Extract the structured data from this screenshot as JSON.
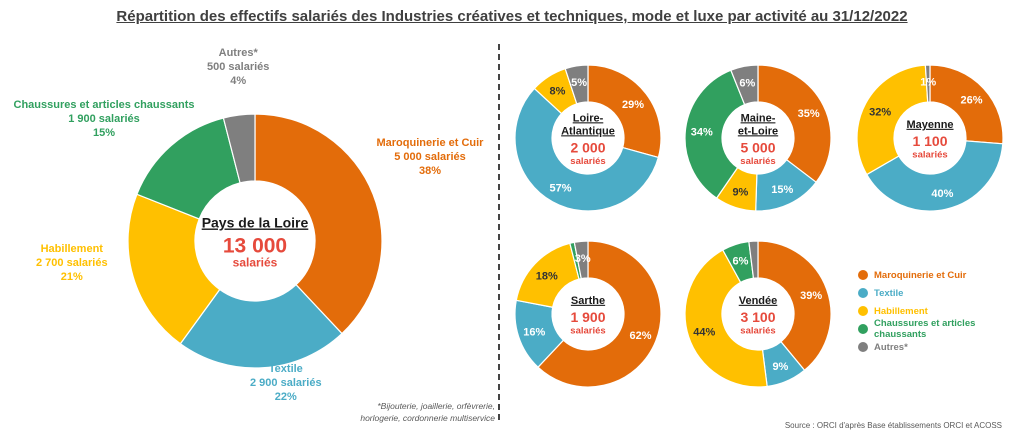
{
  "title": "Répartition des effectifs salariés des Industries créatives et techniques, mode et luxe par activité au 31/12/2022",
  "colors": {
    "maroquinerie": "#E36C0A",
    "textile": "#4BACC6",
    "habillement": "#FFC000",
    "chaussures": "#31A05F",
    "autres": "#7F7F7F",
    "total": "#E64A3C"
  },
  "legend": [
    {
      "key": "maroquinerie",
      "label": "Maroquinerie et Cuir"
    },
    {
      "key": "textile",
      "label": "Textile"
    },
    {
      "key": "habillement",
      "label": "Habillement"
    },
    {
      "key": "chaussures",
      "label": "Chaussures et articles chaussants"
    },
    {
      "key": "autres",
      "label": "Autres*"
    }
  ],
  "main_labels": {
    "maroquinerie": [
      "Maroquinerie et Cuir",
      "5 000 salariés",
      "38%"
    ],
    "textile": [
      "Textile",
      "2 900 salariés",
      "22%"
    ],
    "habillement": [
      "Habillement",
      "2 700 salariés",
      "21%"
    ],
    "chaussures": [
      "Chaussures et articles chaussants",
      "1 900 salariés",
      "15%"
    ],
    "autres": [
      "Autres*",
      "500 salariés",
      "4%"
    ]
  },
  "footnote": [
    "*Bijouterie, joaillerie, orfèvrerie,",
    "horlogerie, cordonnerie multiservice"
  ],
  "source": "Source : ORCI d'après Base établissements ORCI et ACOSS",
  "chart_data": [
    {
      "type": "pie",
      "name": "Pays de la Loire",
      "total": "13 000",
      "unit": "salariés",
      "categories": [
        "Maroquinerie et Cuir",
        "Textile",
        "Habillement",
        "Chaussures et articles chaussants",
        "Autres*"
      ],
      "values": [
        38,
        22,
        21,
        15,
        4
      ],
      "value_labels": [
        "5 000 salariés",
        "2 900 salariés",
        "2 700 salariés",
        "1 900 salariés",
        "500 salariés"
      ]
    },
    {
      "type": "pie",
      "name": [
        "Loire-",
        "Atlantique"
      ],
      "total": "2 000",
      "unit": "salariés",
      "categories": [
        "Maroquinerie et Cuir",
        "Textile",
        "Habillement",
        "Chaussures et articles chaussants",
        "Autres*"
      ],
      "values": [
        29,
        57,
        8,
        0,
        5
      ]
    },
    {
      "type": "pie",
      "name": [
        "Maine-",
        "et-Loire"
      ],
      "total": "5 000",
      "unit": "salariés",
      "categories": [
        "Maroquinerie et Cuir",
        "Textile",
        "Habillement",
        "Chaussures et articles chaussants",
        "Autres*"
      ],
      "values": [
        35,
        15,
        9,
        34,
        6
      ]
    },
    {
      "type": "pie",
      "name": [
        "Mayenne"
      ],
      "total": "1 100",
      "unit": "salariés",
      "categories": [
        "Maroquinerie et Cuir",
        "Textile",
        "Habillement",
        "Chaussures et articles chaussants",
        "Autres*"
      ],
      "values": [
        26,
        40,
        32,
        0,
        1
      ]
    },
    {
      "type": "pie",
      "name": [
        "Sarthe"
      ],
      "total": "1 900",
      "unit": "salariés",
      "categories": [
        "Maroquinerie et Cuir",
        "Textile",
        "Habillement",
        "Chaussures et articles chaussants",
        "Autres*"
      ],
      "values": [
        62,
        16,
        18,
        1,
        3
      ]
    },
    {
      "type": "pie",
      "name": [
        "Vendée"
      ],
      "total": "3 100",
      "unit": "salariés",
      "categories": [
        "Maroquinerie et Cuir",
        "Textile",
        "Habillement",
        "Chaussures et articles chaussants",
        "Autres*"
      ],
      "values": [
        39,
        9,
        44,
        6,
        2
      ]
    }
  ]
}
